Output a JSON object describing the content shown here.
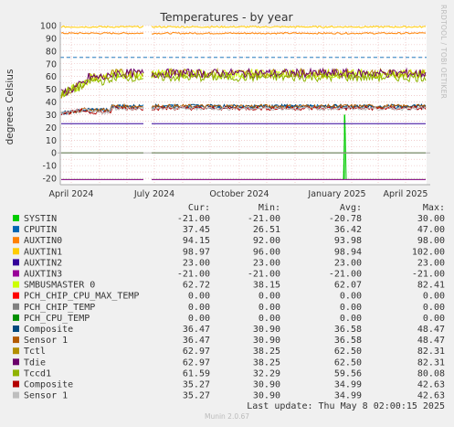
{
  "side_label": "RRDTOOL / TOBI OETIKER",
  "footer": "Munin 2.0.67",
  "last_update": "Last update: Thu May  8 02:00:15 2025",
  "table_headers": [
    "Cur:",
    "Min:",
    "Avg:",
    "Max:"
  ],
  "chart_data": {
    "type": "line",
    "title": "Temperatures - by year",
    "ylabel": "degrees Celsius",
    "xlabel": "",
    "ylim": [
      -25,
      100
    ],
    "yticks": [
      100,
      90,
      80,
      70,
      60,
      50,
      40,
      30,
      20,
      10,
      0,
      -10,
      -20
    ],
    "xticks": [
      "April 2024",
      "July 2024",
      "October 2024",
      "January 2025",
      "April 2025"
    ],
    "grid": true,
    "legend_position": "bottom",
    "series": [
      {
        "name": "SYSTIN",
        "color": "#00cc00",
        "cur": "-21.00",
        "min": "-21.00",
        "avg": "-20.78",
        "max": "30.00",
        "level": -21
      },
      {
        "name": "CPUTIN",
        "color": "#0066b3",
        "cur": "37.45",
        "min": "26.51",
        "avg": "36.42",
        "max": "47.00",
        "level": 36.4
      },
      {
        "name": "AUXTIN0",
        "color": "#ff8000",
        "cur": "94.15",
        "min": "92.00",
        "avg": "93.98",
        "max": "98.00",
        "level": 94
      },
      {
        "name": "AUXTIN1",
        "color": "#ffcc00",
        "cur": "98.97",
        "min": "96.00",
        "avg": "98.94",
        "max": "102.00",
        "level": 99
      },
      {
        "name": "AUXTIN2",
        "color": "#330099",
        "cur": "23.00",
        "min": "23.00",
        "avg": "23.00",
        "max": "23.00",
        "level": 23
      },
      {
        "name": "AUXTIN3",
        "color": "#990099",
        "cur": "-21.00",
        "min": "-21.00",
        "avg": "-21.00",
        "max": "-21.00",
        "level": -21
      },
      {
        "name": "SMBUSMASTER 0",
        "color": "#ccff00",
        "cur": "62.72",
        "min": "38.15",
        "avg": "62.07",
        "max": "82.41",
        "level": 62
      },
      {
        "name": "PCH_CHIP_CPU_MAX_TEMP",
        "color": "#ff0000",
        "cur": "0.00",
        "min": "0.00",
        "avg": "0.00",
        "max": "0.00",
        "level": 0
      },
      {
        "name": "PCH_CHIP_TEMP",
        "color": "#808080",
        "cur": "0.00",
        "min": "0.00",
        "avg": "0.00",
        "max": "0.00",
        "level": 0
      },
      {
        "name": "PCH_CPU_TEMP",
        "color": "#008f00",
        "cur": "0.00",
        "min": "0.00",
        "avg": "0.00",
        "max": "0.00",
        "level": 0
      },
      {
        "name": "Composite",
        "color": "#00487d",
        "cur": "36.47",
        "min": "30.90",
        "avg": "36.58",
        "max": "48.47",
        "level": 36.6
      },
      {
        "name": "Sensor 1",
        "color": "#b35a00",
        "cur": "36.47",
        "min": "30.90",
        "avg": "36.58",
        "max": "48.47",
        "level": 36.6
      },
      {
        "name": "Tctl",
        "color": "#b38f00",
        "cur": "62.97",
        "min": "38.25",
        "avg": "62.50",
        "max": "82.31",
        "level": 62.5
      },
      {
        "name": "Tdie",
        "color": "#6b006b",
        "cur": "62.97",
        "min": "38.25",
        "avg": "62.50",
        "max": "82.31",
        "level": 62.5
      },
      {
        "name": "Tccd1",
        "color": "#8fb300",
        "cur": "61.59",
        "min": "32.29",
        "avg": "59.56",
        "max": "80.08",
        "level": 59.5
      },
      {
        "name": "Composite",
        "color": "#b30000",
        "cur": "35.27",
        "min": "30.90",
        "avg": "34.99",
        "max": "42.63",
        "level": 35
      },
      {
        "name": "Sensor 1",
        "color": "#bebebe",
        "cur": "35.27",
        "min": "30.90",
        "avg": "34.99",
        "max": "42.63",
        "level": 35
      }
    ]
  }
}
